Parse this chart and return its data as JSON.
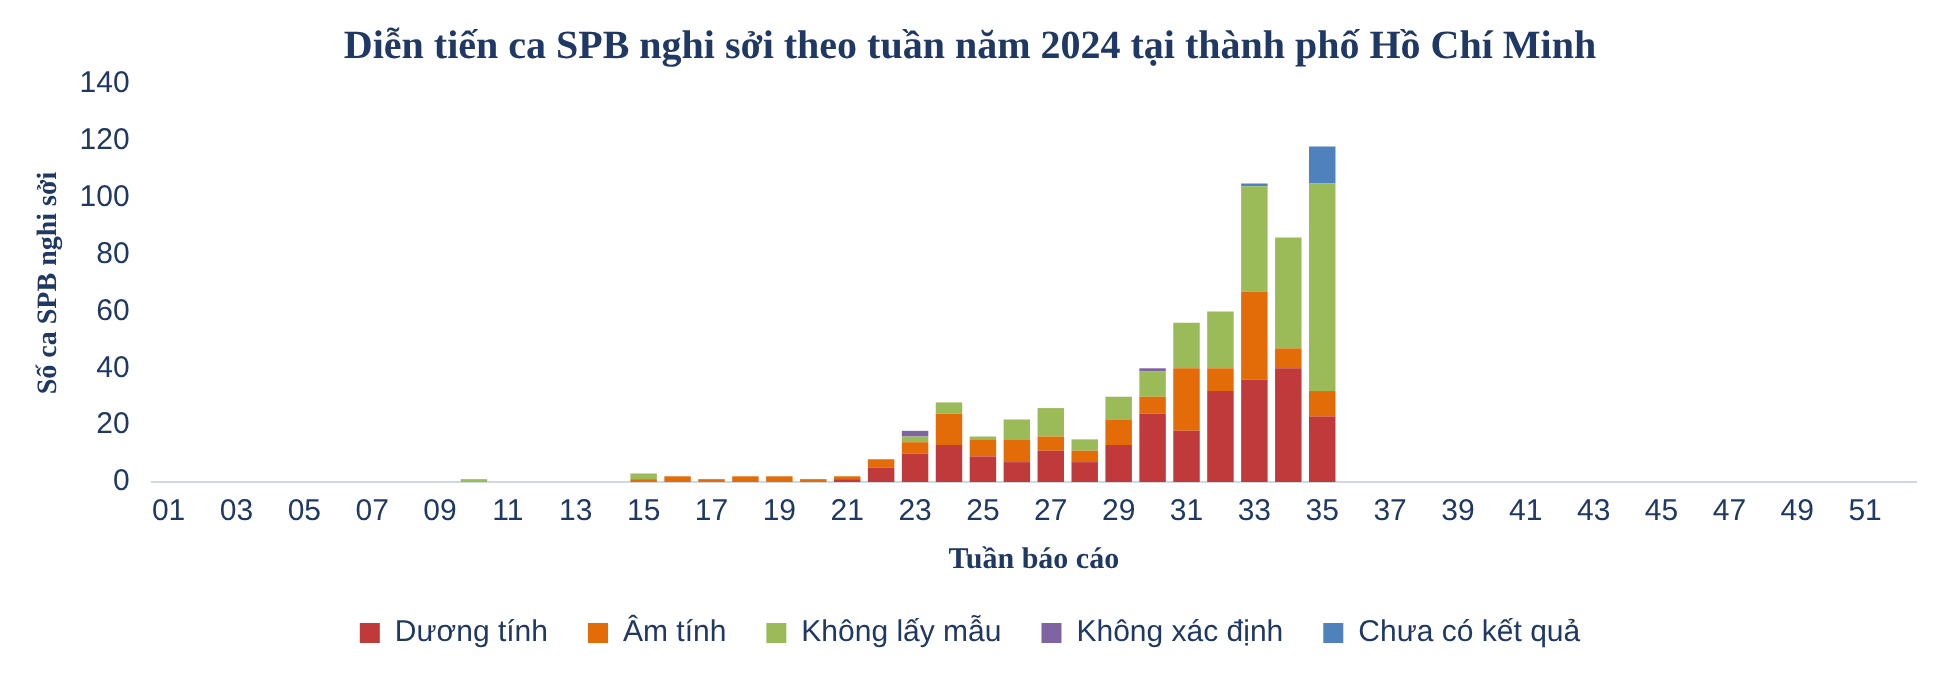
{
  "chart_data": {
    "type": "bar",
    "title": "Diễn tiến ca SPB nghi sởi theo tuần năm 2024 tại thành phố Hồ Chí Minh",
    "xlabel": "Tuần báo cáo",
    "ylabel": "Số ca SPB nghi sởi",
    "stacked": true,
    "legend": "bottom",
    "grid": false,
    "categories": [
      "01",
      null,
      "03",
      null,
      "05",
      null,
      "07",
      null,
      "09",
      null,
      "11",
      null,
      "13",
      null,
      "15",
      null,
      "17",
      null,
      "19",
      null,
      "21",
      null,
      "23",
      null,
      "25",
      null,
      "27",
      null,
      "29",
      null,
      "31",
      null,
      "33",
      null,
      "35",
      null,
      "37",
      null,
      "39",
      null,
      "41",
      null,
      "43",
      null,
      "45",
      null,
      "47",
      null,
      "49",
      null,
      "51",
      null
    ],
    "ylim": [
      0,
      140
    ],
    "yticks": [
      0,
      20,
      40,
      60,
      80,
      100,
      120,
      140
    ],
    "series": [
      {
        "name": "Dương tính",
        "color": "#c0393b",
        "values": [
          0,
          0,
          0,
          0,
          0,
          0,
          0,
          0,
          0,
          0,
          0,
          0,
          0,
          0,
          0,
          0,
          0,
          0,
          0,
          0,
          1,
          5,
          10,
          13,
          9,
          7,
          11,
          7,
          13,
          24,
          18,
          32,
          36,
          40,
          23,
          0,
          0,
          0,
          0,
          0,
          0,
          0,
          0,
          0,
          0,
          0,
          0,
          0,
          0,
          0,
          0,
          0
        ]
      },
      {
        "name": "Âm tính",
        "color": "#e36c09",
        "values": [
          0,
          0,
          0,
          0,
          0,
          0,
          0,
          0,
          0,
          0,
          0,
          0,
          0,
          0,
          1,
          2,
          1,
          2,
          2,
          1,
          1,
          3,
          4,
          11,
          6,
          8,
          5,
          4,
          9,
          6,
          22,
          8,
          31,
          7,
          9,
          0,
          0,
          0,
          0,
          0,
          0,
          0,
          0,
          0,
          0,
          0,
          0,
          0,
          0,
          0,
          0,
          0
        ]
      },
      {
        "name": "Không lấy mẫu",
        "color": "#9bbb59",
        "values": [
          0,
          0,
          0,
          0,
          0,
          0,
          0,
          0,
          0,
          1,
          0,
          0,
          0,
          0,
          2,
          0,
          0,
          0,
          0,
          0,
          0,
          0,
          2,
          4,
          1,
          7,
          10,
          4,
          8,
          9,
          16,
          20,
          37,
          39,
          73,
          0,
          0,
          0,
          0,
          0,
          0,
          0,
          0,
          0,
          0,
          0,
          0,
          0,
          0,
          0,
          0,
          0
        ]
      },
      {
        "name": "Không xác định",
        "color": "#8064a2",
        "values": [
          0,
          0,
          0,
          0,
          0,
          0,
          0,
          0,
          0,
          0,
          0,
          0,
          0,
          0,
          0,
          0,
          0,
          0,
          0,
          0,
          0,
          0,
          2,
          0,
          0,
          0,
          0,
          0,
          0,
          1,
          0,
          0,
          0,
          0,
          0,
          0,
          0,
          0,
          0,
          0,
          0,
          0,
          0,
          0,
          0,
          0,
          0,
          0,
          0,
          0,
          0,
          0
        ]
      },
      {
        "name": "Chưa có kết quả",
        "color": "#4f81bd",
        "values": [
          0,
          0,
          0,
          0,
          0,
          0,
          0,
          0,
          0,
          0,
          0,
          0,
          0,
          0,
          0,
          0,
          0,
          0,
          0,
          0,
          0,
          0,
          0,
          0,
          0,
          0,
          0,
          0,
          0,
          0,
          0,
          0,
          1,
          0,
          13,
          0,
          0,
          0,
          0,
          0,
          0,
          0,
          0,
          0,
          0,
          0,
          0,
          0,
          0,
          0,
          0,
          0
        ]
      }
    ]
  }
}
